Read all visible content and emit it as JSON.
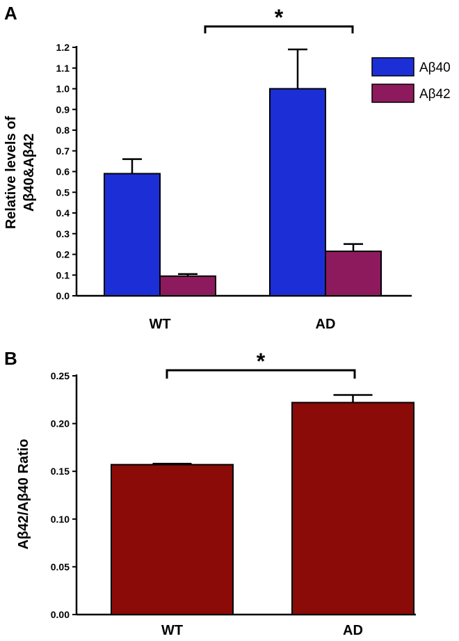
{
  "chart_data": [
    {
      "panel": "A",
      "type": "bar",
      "categories": [
        "WT",
        "AD"
      ],
      "series": [
        {
          "name": "Aβ40",
          "values": [
            0.59,
            1.0
          ],
          "errors": [
            0.07,
            0.19
          ],
          "color": "#1c2fd6"
        },
        {
          "name": "Aβ42",
          "values": [
            0.095,
            0.215
          ],
          "errors": [
            0.01,
            0.035
          ],
          "color": "#8e1a5e"
        }
      ],
      "ylabel_lines": [
        "Relative levels of",
        "Aβ40&Aβ42"
      ],
      "ylim": [
        0,
        1.2
      ],
      "yticks": [
        "0.0",
        "0.1",
        "0.2",
        "0.3",
        "0.4",
        "0.5",
        "0.6",
        "0.7",
        "0.8",
        "0.9",
        "1.0",
        "1.1",
        "1.2"
      ],
      "legend_position": "top-right",
      "significance": "*"
    },
    {
      "panel": "B",
      "type": "bar",
      "categories": [
        "WT",
        "AD"
      ],
      "series": [
        {
          "values": [
            0.157,
            0.222
          ],
          "errors": [
            0.001,
            0.008
          ],
          "color": "#8a0b07"
        }
      ],
      "ylabel": "Aβ42/Aβ40 Ratio",
      "ylim": [
        0,
        0.25
      ],
      "yticks": [
        "0.00",
        "0.05",
        "0.10",
        "0.15",
        "0.20",
        "0.25"
      ],
      "significance": "*"
    }
  ]
}
